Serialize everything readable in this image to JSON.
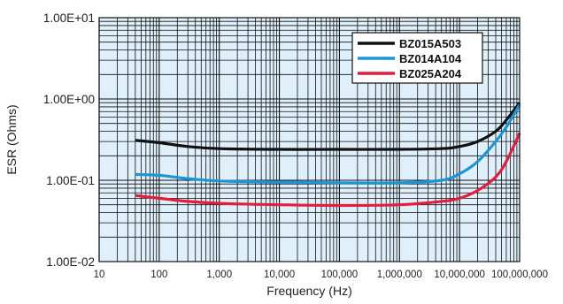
{
  "chart_data": {
    "type": "line",
    "title": "",
    "xlabel": "Frequency (Hz)",
    "ylabel": "ESR (Ohms)",
    "x_scale": "log",
    "y_scale": "log",
    "xlim": [
      10,
      100000000
    ],
    "ylim": [
      0.01,
      10
    ],
    "x_ticks": [
      10,
      100,
      1000,
      10000,
      100000,
      1000000,
      10000000,
      100000000
    ],
    "x_tick_labels": [
      "10",
      "100",
      "1,000",
      "10,000",
      "100,000",
      "1,000,000",
      "10,000,000",
      "100,000,000"
    ],
    "y_ticks": [
      0.01,
      0.1,
      1,
      10
    ],
    "y_tick_labels": [
      "1.00E-02",
      "1.00E-01",
      "1.00E+00",
      "1.00E+01"
    ],
    "grid": true,
    "background_color": "#dff0fb",
    "legend_position": "top-right",
    "series": [
      {
        "name": "BZ015A503",
        "color": "#111111",
        "x": [
          40,
          100,
          300,
          1000,
          10000,
          100000,
          1000000,
          5000000,
          10000000,
          20000000,
          40000000,
          60000000,
          100000000
        ],
        "y": [
          0.31,
          0.29,
          0.26,
          0.245,
          0.24,
          0.24,
          0.24,
          0.245,
          0.26,
          0.3,
          0.4,
          0.55,
          0.9
        ]
      },
      {
        "name": "BZ014A104",
        "color": "#1a96d8",
        "x": [
          40,
          100,
          300,
          1000,
          10000,
          100000,
          1000000,
          5000000,
          10000000,
          20000000,
          40000000,
          60000000,
          100000000
        ],
        "y": [
          0.118,
          0.115,
          0.105,
          0.098,
          0.095,
          0.093,
          0.093,
          0.1,
          0.12,
          0.17,
          0.3,
          0.45,
          0.85
        ]
      },
      {
        "name": "BZ025A204",
        "color": "#e31e3c",
        "x": [
          40,
          100,
          300,
          1000,
          10000,
          100000,
          1000000,
          5000000,
          10000000,
          20000000,
          40000000,
          60000000,
          100000000
        ],
        "y": [
          0.065,
          0.06,
          0.055,
          0.052,
          0.05,
          0.049,
          0.05,
          0.055,
          0.06,
          0.075,
          0.11,
          0.17,
          0.38
        ]
      }
    ]
  }
}
